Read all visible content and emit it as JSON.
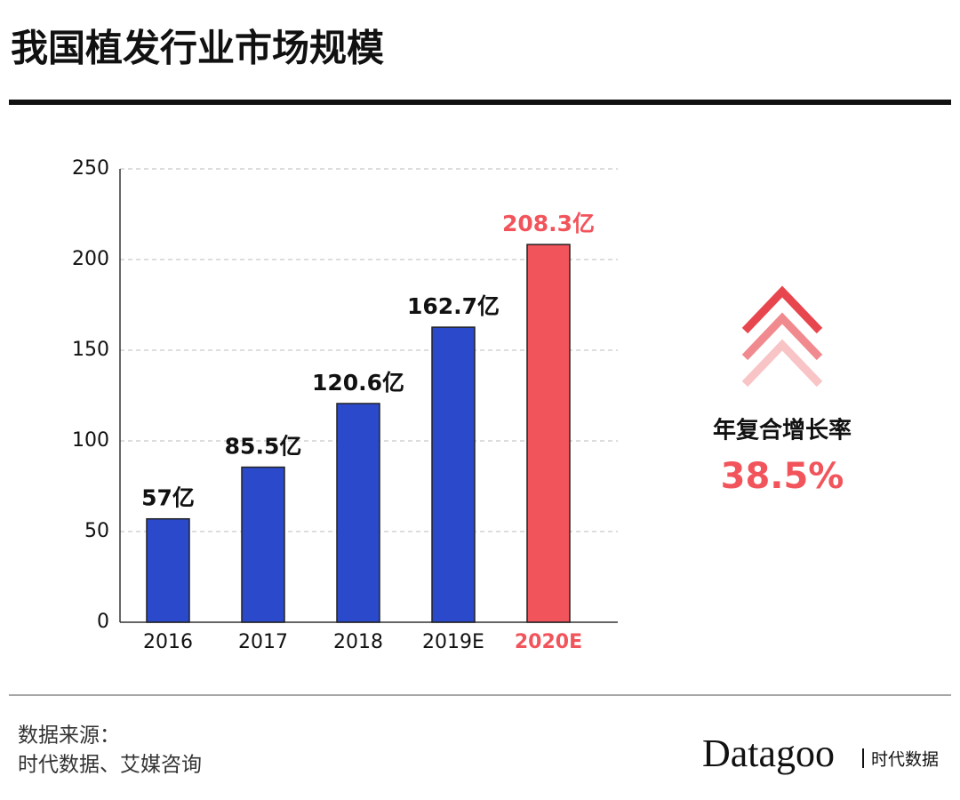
{
  "chart_data": {
    "type": "bar",
    "title": "我国植发行业市场规模",
    "categories": [
      "2016",
      "2017",
      "2018",
      "2019E",
      "2020E"
    ],
    "values": [
      57,
      85.5,
      120.6,
      162.7,
      208.3
    ],
    "value_labels": [
      "57亿",
      "85.5亿",
      "120.6亿",
      "162.7亿",
      "208.3亿"
    ],
    "colors": [
      "#2b4acb",
      "#2b4acb",
      "#2b4acb",
      "#2b4acb",
      "#f2545b"
    ],
    "label_colors": [
      "#111111",
      "#111111",
      "#111111",
      "#111111",
      "#f2545b"
    ],
    "ylim": [
      0,
      250
    ],
    "yticks": [
      0,
      50,
      100,
      150,
      200,
      250
    ],
    "grid": true,
    "annotations": [
      {
        "text": "年复合增长率"
      },
      {
        "text": "38.5%"
      }
    ]
  },
  "source": {
    "heading": "数据来源：",
    "text": "时代数据、艾媒咨询"
  },
  "brand": {
    "name": "Datagoo",
    "sub": "时代数据"
  }
}
